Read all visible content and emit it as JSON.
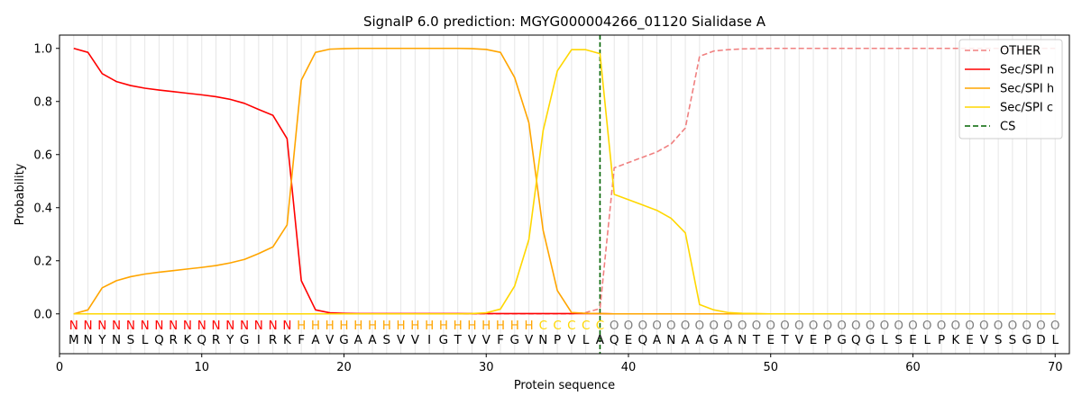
{
  "chart_data": {
    "type": "line",
    "title": "SignalP 6.0 prediction: MGYG000004266_01120 Sialidase A",
    "xlabel": "Protein sequence",
    "ylabel": "Probability",
    "xlim": [
      0,
      71
    ],
    "ylim": [
      -0.15,
      1.05
    ],
    "x_ticks": [
      0,
      10,
      20,
      30,
      40,
      50,
      60,
      70
    ],
    "y_ticks": [
      0.0,
      0.2,
      0.4,
      0.6,
      0.8,
      1.0
    ],
    "x_tick_labels": [
      "0",
      "10",
      "20",
      "30",
      "40",
      "50",
      "60",
      "70"
    ],
    "y_tick_labels": [
      "0.0",
      "0.2",
      "0.4",
      "0.6",
      "0.8",
      "1.0"
    ],
    "grid": "vertical lines at each residue",
    "legend_position": "top-right",
    "sequence": "MNYNSLQRKQRYGIRKFAVGAASVVIGTVVFGVNPVLAQEQANAAGANTETVEPGQGLSELPKEVSSGDL",
    "regions": "NNNNNNNNNNNNNNNNHHHHHHHHHHHHHHHHHCCCCCOOOOOOOOOOOOOOOOOOOOOOOOOOOOOOOO",
    "region_colors": {
      "N": "#ff0000",
      "H": "#ffa500",
      "C": "#ffd700",
      "O": "#808080"
    },
    "series": [
      {
        "name": "OTHER",
        "color": "#f08080",
        "dash": "dashed",
        "values": [
          0,
          0,
          0,
          0,
          0,
          0,
          0,
          0,
          0,
          0,
          0,
          0,
          0,
          0,
          0,
          0,
          0,
          0,
          0,
          0,
          0,
          0,
          0,
          0,
          0,
          0,
          0,
          0,
          0,
          0,
          0,
          0,
          0,
          0,
          0,
          0,
          0.005,
          0.02,
          0.55,
          0.57,
          0.59,
          0.61,
          0.64,
          0.7,
          0.97,
          0.99,
          0.995,
          0.998,
          0.999,
          1,
          1,
          1,
          1,
          1,
          1,
          1,
          1,
          1,
          1,
          1,
          1,
          1,
          1,
          1,
          1,
          1,
          1,
          1,
          1,
          1
        ]
      },
      {
        "name": "Sec/SPI n",
        "color": "#ff0000",
        "dash": "solid",
        "values": [
          1.0,
          0.985,
          0.905,
          0.875,
          0.86,
          0.85,
          0.843,
          0.837,
          0.831,
          0.825,
          0.818,
          0.808,
          0.793,
          0.77,
          0.748,
          0.66,
          0.125,
          0.015,
          0.004,
          0.002,
          0.001,
          0.001,
          0.001,
          0.001,
          0.001,
          0.001,
          0.001,
          0.001,
          0.001,
          0.001,
          0.001,
          0.001,
          0.001,
          0.001,
          0.001,
          0.001,
          0.001,
          0.001,
          0,
          0,
          0,
          0,
          0,
          0,
          0,
          0,
          0,
          0,
          0,
          0,
          0,
          0,
          0,
          0,
          0,
          0,
          0,
          0,
          0,
          0,
          0,
          0,
          0,
          0,
          0,
          0,
          0,
          0,
          0,
          0
        ]
      },
      {
        "name": "Sec/SPI h",
        "color": "#ffa500",
        "dash": "solid",
        "values": [
          0.0,
          0.015,
          0.098,
          0.125,
          0.14,
          0.15,
          0.157,
          0.163,
          0.169,
          0.175,
          0.182,
          0.192,
          0.205,
          0.227,
          0.252,
          0.335,
          0.88,
          0.985,
          0.997,
          0.999,
          1.0,
          1.0,
          1.0,
          1.0,
          1.0,
          1.0,
          1.0,
          1.0,
          0.999,
          0.996,
          0.985,
          0.89,
          0.72,
          0.315,
          0.088,
          0.005,
          0.002,
          0.001,
          0,
          0,
          0,
          0,
          0,
          0,
          0,
          0,
          0,
          0,
          0,
          0,
          0,
          0,
          0,
          0,
          0,
          0,
          0,
          0,
          0,
          0,
          0,
          0,
          0,
          0,
          0,
          0,
          0,
          0,
          0,
          0
        ]
      },
      {
        "name": "Sec/SPI c",
        "color": "#ffd700",
        "dash": "solid",
        "values": [
          0,
          0,
          0,
          0,
          0,
          0,
          0,
          0,
          0,
          0,
          0,
          0,
          0,
          0,
          0,
          0,
          0,
          0,
          0,
          0,
          0,
          0,
          0,
          0,
          0,
          0,
          0,
          0,
          0.001,
          0.004,
          0.018,
          0.105,
          0.28,
          0.69,
          0.915,
          0.995,
          0.995,
          0.98,
          0.45,
          0.43,
          0.41,
          0.39,
          0.36,
          0.305,
          0.035,
          0.015,
          0.005,
          0.002,
          0.001,
          0,
          0,
          0,
          0,
          0,
          0,
          0,
          0,
          0,
          0,
          0,
          0,
          0,
          0,
          0,
          0,
          0,
          0,
          0,
          0,
          0
        ]
      }
    ],
    "cs": {
      "name": "CS",
      "x": 38,
      "color": "#006400",
      "dash": "dashed"
    }
  }
}
